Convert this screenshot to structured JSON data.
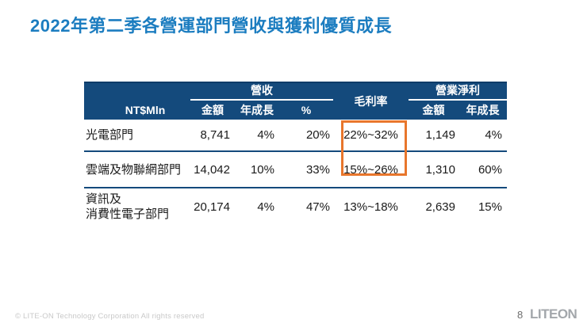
{
  "title": "2022年第二季各營運部門營收與獲利優質成長",
  "table": {
    "unit_label": "NT$Mln",
    "header": {
      "revenue_group": "營收",
      "gross_margin": "毛利率",
      "operating_profit_group": "營業淨利",
      "amount": "金額",
      "yoy": "年成長",
      "percent": "%"
    },
    "rows": [
      {
        "label": "光電部門",
        "revenue_amount": "8,741",
        "revenue_yoy": "4%",
        "revenue_share": "20%",
        "gross_margin": "22%~32%",
        "op_amount": "1,149",
        "op_yoy": "4%"
      },
      {
        "label": "雲端及物聯網部門",
        "revenue_amount": "14,042",
        "revenue_yoy": "10%",
        "revenue_share": "33%",
        "gross_margin": "15%~26%",
        "op_amount": "1,310",
        "op_yoy": "60%"
      },
      {
        "label": "資訊及\n消費性電子部門",
        "revenue_amount": "20,174",
        "revenue_yoy": "4%",
        "revenue_share": "47%",
        "gross_margin": "13%~18%",
        "op_amount": "2,639",
        "op_yoy": "15%"
      }
    ]
  },
  "footer": {
    "copyright": "© LITE-ON Technology Corporation All rights reserved",
    "page_number": "8",
    "logo_text": "LITEON"
  },
  "colors": {
    "title_blue": "#1c7dc0",
    "header_navy": "#144a7c",
    "highlight_orange": "#e8762c"
  }
}
